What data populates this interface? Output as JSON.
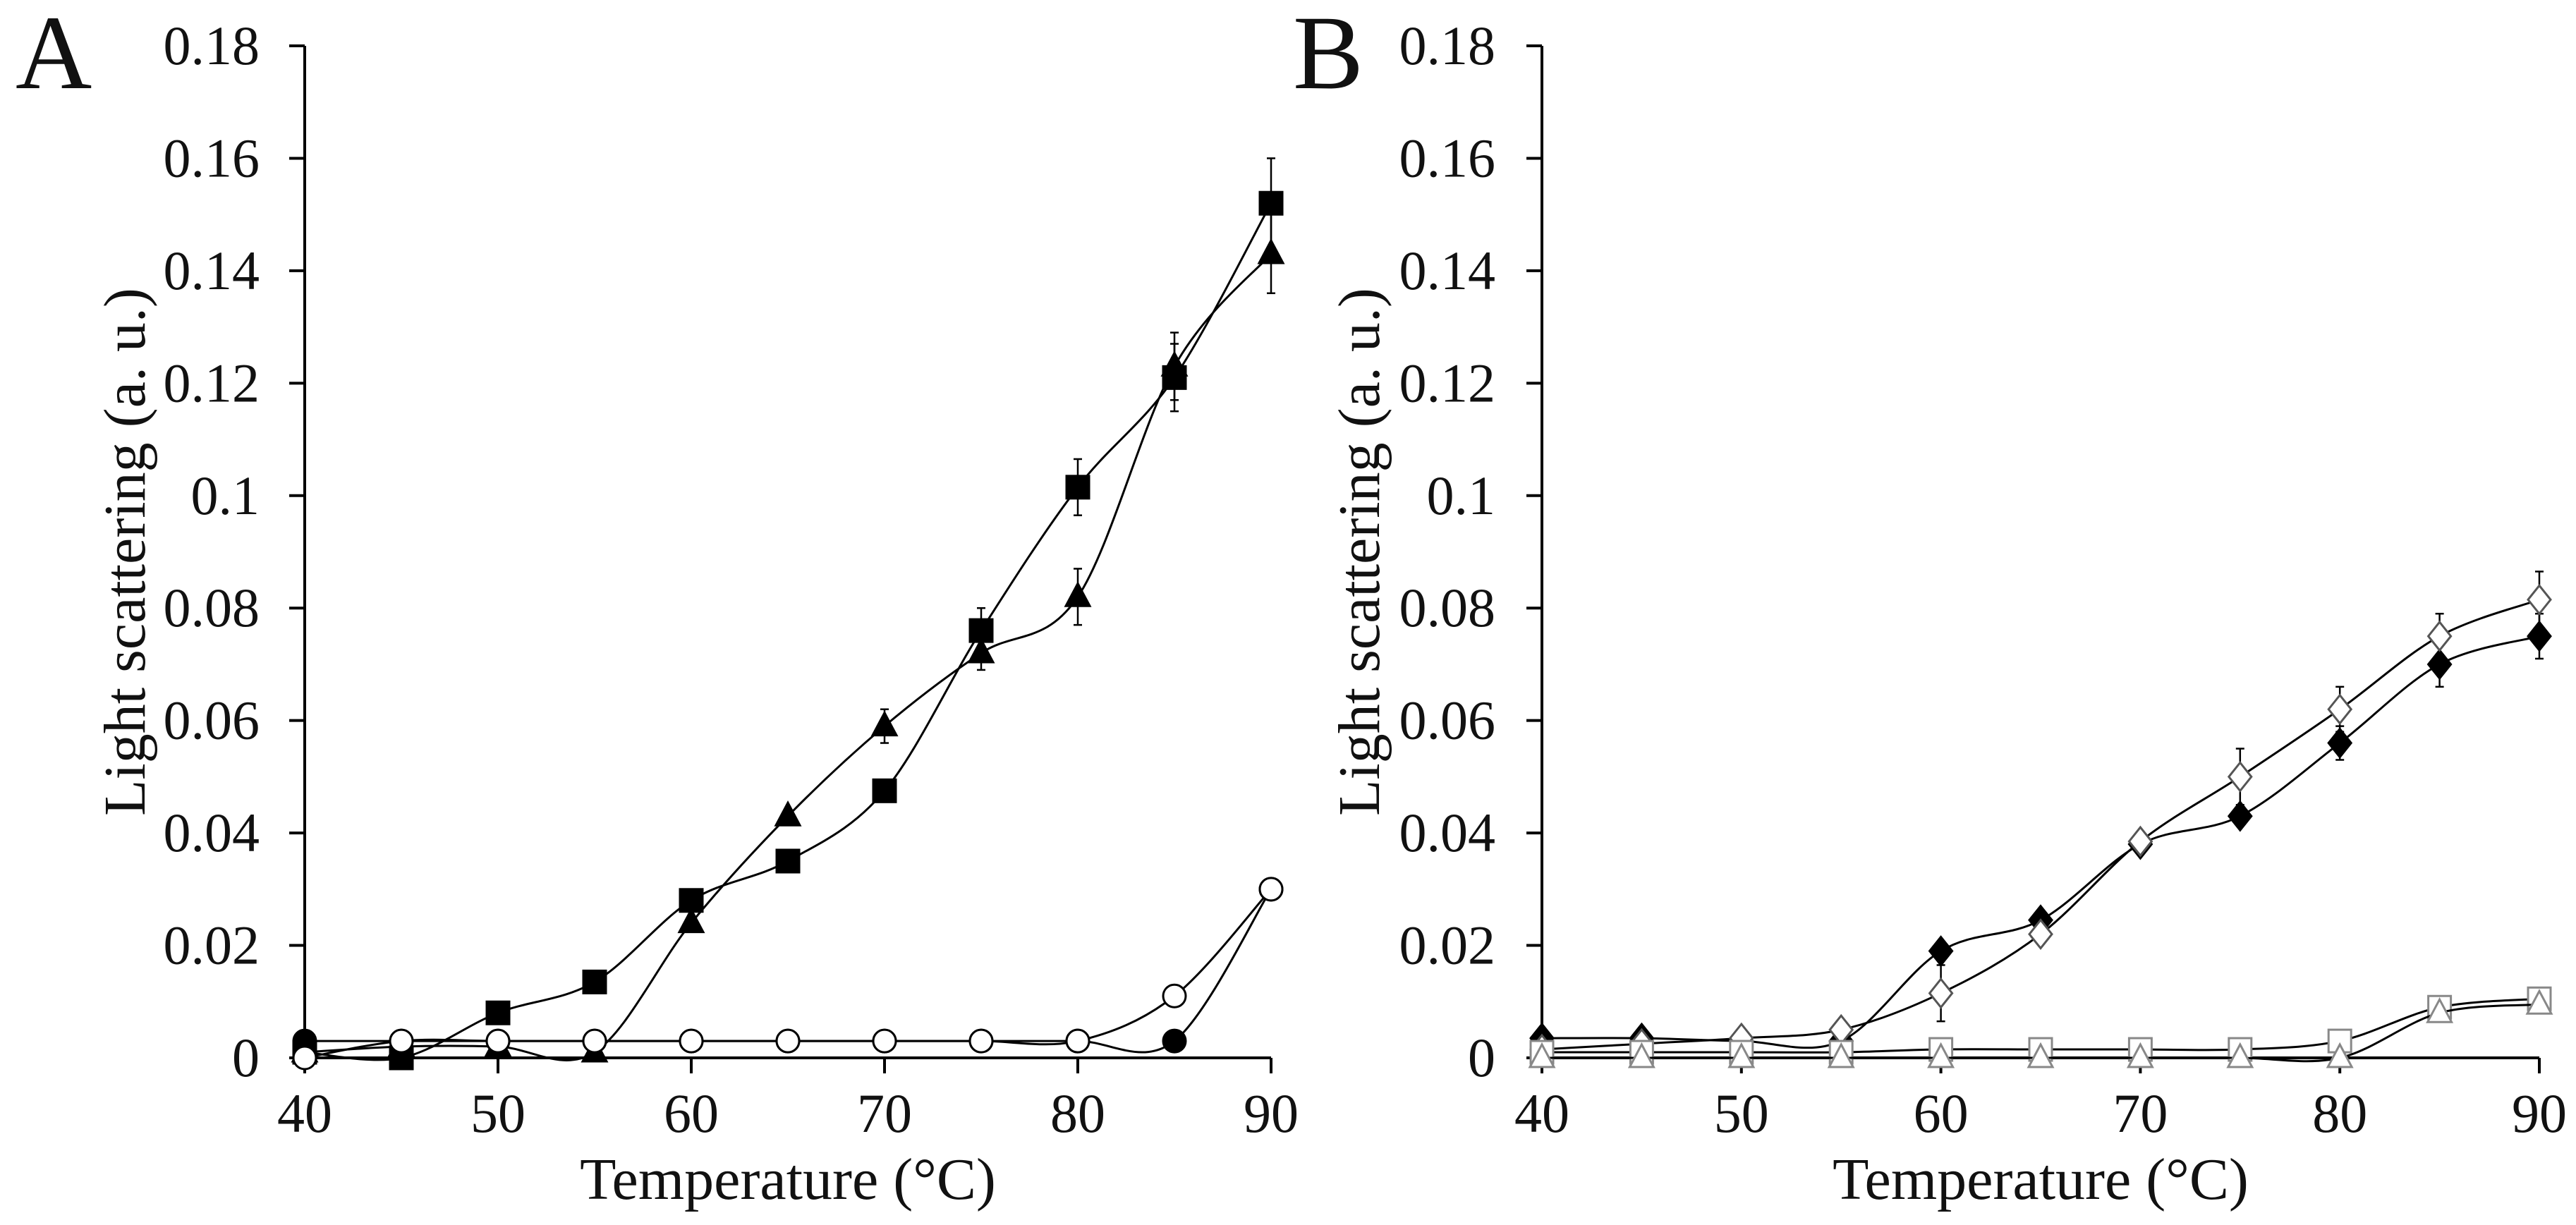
{
  "figure": {
    "panels": [
      "A",
      "B"
    ]
  },
  "chart_data": [
    {
      "panel": "A",
      "type": "line",
      "xlabel": "Temperature (°C)",
      "ylabel": "Light scattering (a. u.)",
      "xlim": [
        40,
        90
      ],
      "ylim": [
        0,
        0.18
      ],
      "xticks": [
        "40",
        "50",
        "60",
        "70",
        "80",
        "90"
      ],
      "yticks": [
        "0",
        "0.02",
        "0.04",
        "0.06",
        "0.08",
        "0.1",
        "0.12",
        "0.14",
        "0.16",
        "0.18"
      ],
      "grid": false,
      "x": [
        40,
        45,
        50,
        55,
        60,
        65,
        70,
        75,
        80,
        85,
        90
      ],
      "series": [
        {
          "name": "filled square",
          "marker": "square",
          "fill": "#000000",
          "stroke": "#000000",
          "values": [
            0.001,
            0.0,
            0.008,
            0.0135,
            0.028,
            0.035,
            0.0475,
            0.076,
            0.1015,
            0.121,
            0.152
          ],
          "errors": [
            0,
            0,
            0,
            0,
            0,
            0,
            0,
            0.004,
            0.005,
            0.006,
            0.008
          ]
        },
        {
          "name": "filled triangle",
          "marker": "triangle",
          "fill": "#000000",
          "stroke": "#000000",
          "values": [
            0.001,
            0.002,
            0.002,
            0.001,
            0.024,
            0.043,
            0.059,
            0.072,
            0.082,
            0.123,
            0.143
          ],
          "errors": [
            0,
            0,
            0,
            0,
            0,
            0,
            0.003,
            0.003,
            0.005,
            0.006,
            0.007
          ]
        },
        {
          "name": "filled circle",
          "marker": "circle",
          "fill": "#000000",
          "stroke": "#000000",
          "values": [
            0.003,
            0.003,
            0.003,
            0.003,
            0.003,
            0.003,
            0.003,
            0.003,
            0.003,
            0.003,
            0.03
          ],
          "errors": [
            0,
            0,
            0,
            0,
            0,
            0,
            0,
            0,
            0,
            0,
            0
          ]
        },
        {
          "name": "open circle",
          "marker": "circle",
          "fill": "#ffffff",
          "stroke": "#000000",
          "values": [
            0.0,
            0.003,
            0.003,
            0.003,
            0.003,
            0.003,
            0.003,
            0.003,
            0.003,
            0.011,
            0.03
          ],
          "errors": [
            0,
            0,
            0,
            0,
            0,
            0,
            0,
            0,
            0,
            0,
            0
          ]
        }
      ]
    },
    {
      "panel": "B",
      "type": "line",
      "xlabel": "Temperature (°C)",
      "ylabel": "Light scattering (a. u.)",
      "xlim": [
        40,
        90
      ],
      "ylim": [
        0,
        0.18
      ],
      "xticks": [
        "40",
        "50",
        "60",
        "70",
        "80",
        "90"
      ],
      "yticks": [
        "0",
        "0.02",
        "0.04",
        "0.06",
        "0.08",
        "0.1",
        "0.12",
        "0.14",
        "0.16",
        "0.18"
      ],
      "grid": false,
      "x": [
        40,
        45,
        50,
        55,
        60,
        65,
        70,
        75,
        80,
        85,
        90
      ],
      "series": [
        {
          "name": "filled diamond",
          "marker": "diamond",
          "fill": "#000000",
          "stroke": "#000000",
          "values": [
            0.0035,
            0.0035,
            0.003,
            0.003,
            0.019,
            0.0245,
            0.038,
            0.043,
            0.056,
            0.07,
            0.075
          ],
          "errors": [
            0,
            0,
            0,
            0,
            0,
            0,
            0,
            0,
            0.003,
            0.004,
            0.004
          ]
        },
        {
          "name": "open diamond",
          "marker": "diamond",
          "fill": "#ffffff",
          "stroke": "#555555",
          "values": [
            0.0015,
            0.0025,
            0.0035,
            0.005,
            0.0115,
            0.022,
            0.0385,
            0.05,
            0.062,
            0.075,
            0.0815
          ],
          "errors": [
            0,
            0,
            0,
            0,
            0.005,
            0,
            0,
            0.005,
            0.004,
            0.004,
            0.005
          ]
        },
        {
          "name": "open square",
          "marker": "square",
          "fill": "#ffffff",
          "stroke": "#888888",
          "values": [
            0.001,
            0.001,
            0.001,
            0.001,
            0.0015,
            0.0015,
            0.0015,
            0.0015,
            0.003,
            0.009,
            0.0105
          ],
          "errors": [
            0,
            0,
            0,
            0,
            0,
            0,
            0,
            0,
            0,
            0,
            0
          ]
        },
        {
          "name": "open triangle",
          "marker": "triangle",
          "fill": "#ffffff",
          "stroke": "#888888",
          "values": [
            0.0,
            0.0,
            0.0,
            0.0,
            0.0,
            0.0,
            0.0,
            0.0,
            0.0,
            0.008,
            0.0095
          ],
          "errors": [
            0,
            0,
            0,
            0,
            0,
            0,
            0,
            0,
            0,
            0,
            0
          ]
        }
      ]
    }
  ]
}
